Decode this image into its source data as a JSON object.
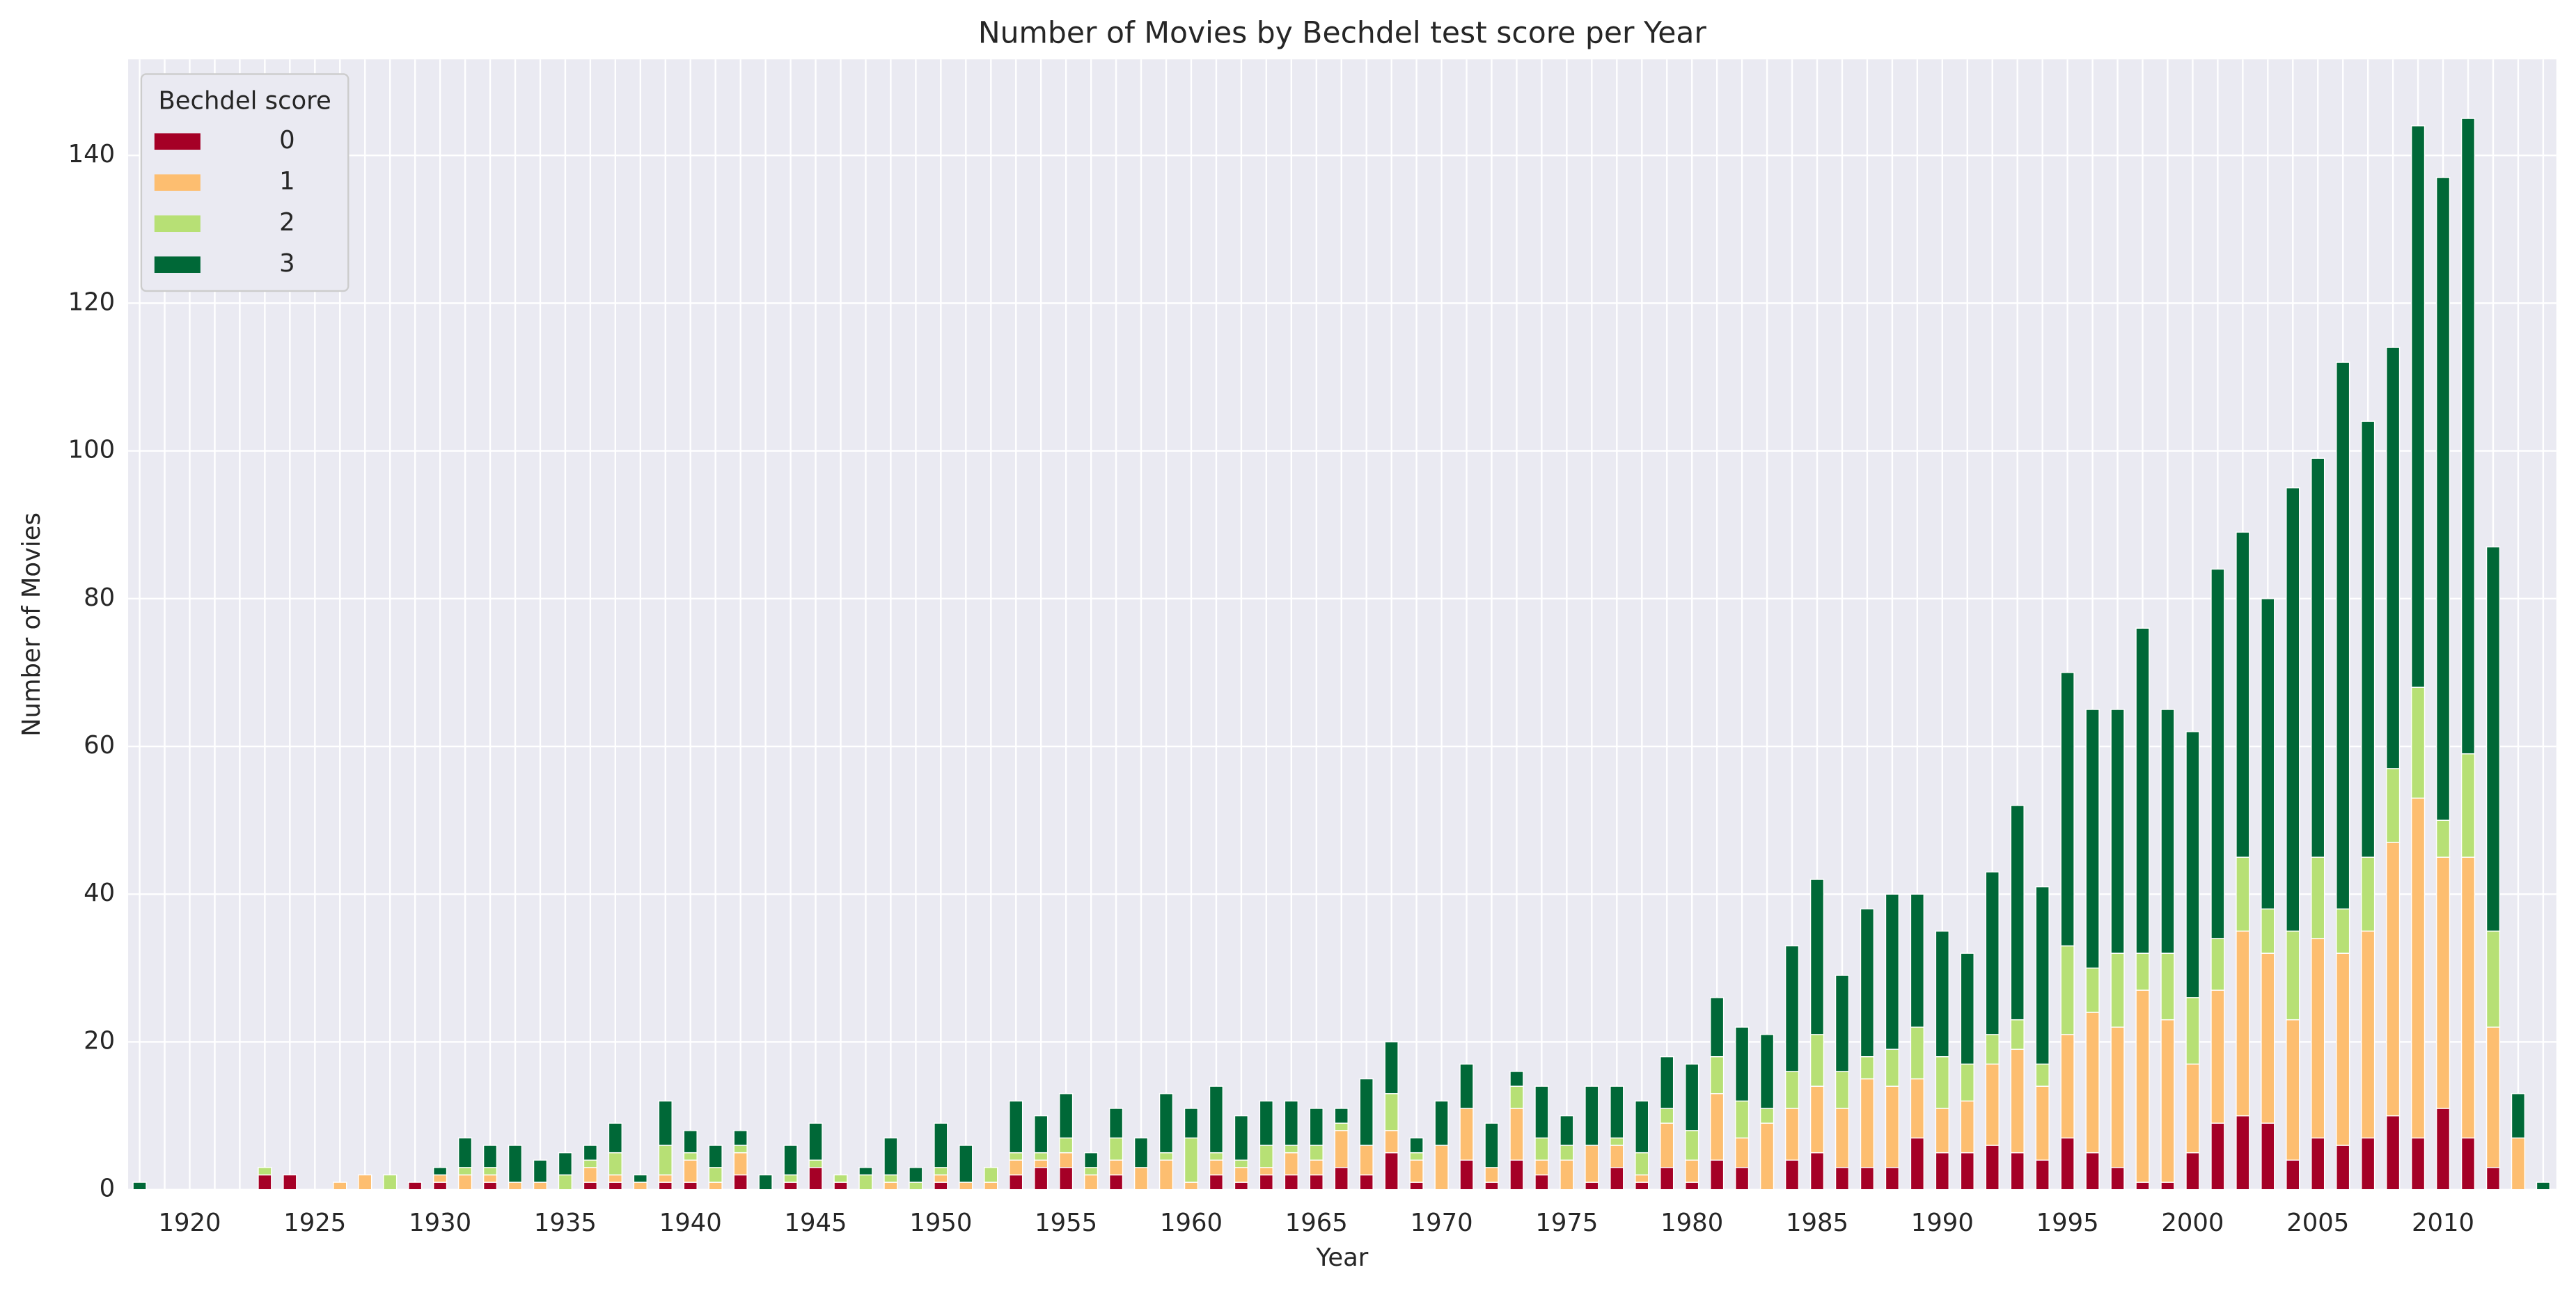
{
  "chart_data": {
    "type": "stacked_bar",
    "title": "Number of Movies by Bechdel test score per Year",
    "xlabel": "Year",
    "ylabel": "Number of Movies",
    "legend_title": "Bechdel score",
    "legend": "upper left",
    "grid": true,
    "categories": [
      null,
      null,
      "1920",
      null,
      null,
      null,
      null,
      "1925",
      null,
      null,
      null,
      null,
      "1930",
      null,
      null,
      null,
      null,
      "1935",
      null,
      null,
      null,
      null,
      "1940",
      null,
      null,
      null,
      null,
      "1945",
      null,
      null,
      null,
      null,
      "1950",
      null,
      null,
      null,
      null,
      "1955",
      null,
      null,
      null,
      null,
      "1960",
      null,
      null,
      null,
      null,
      "1965",
      null,
      null,
      null,
      null,
      "1970",
      null,
      null,
      null,
      null,
      "1975",
      null,
      null,
      null,
      null,
      "1980",
      null,
      null,
      null,
      null,
      "1985",
      null,
      null,
      null,
      null,
      "1990",
      null,
      null,
      null,
      null,
      "1995",
      null,
      null,
      null,
      null,
      "2000",
      null,
      null,
      null,
      null,
      "2005",
      null,
      null,
      null,
      null,
      "2010",
      null,
      null,
      null,
      null
    ],
    "series": [
      {
        "name": "0",
        "color": "#a50026",
        "values": [
          0,
          0,
          0,
          0,
          0,
          2,
          2,
          0,
          0,
          0,
          0,
          1,
          1,
          0,
          1,
          0,
          0,
          0,
          1,
          1,
          0,
          1,
          1,
          0,
          2,
          0,
          1,
          3,
          1,
          0,
          0,
          0,
          1,
          0,
          0,
          2,
          3,
          3,
          0,
          2,
          0,
          0,
          0,
          2,
          1,
          2,
          2,
          2,
          3,
          2,
          5,
          1,
          0,
          4,
          1,
          4,
          2,
          0,
          1,
          3,
          1,
          3,
          1,
          4,
          3,
          0,
          4,
          5,
          3,
          3,
          3,
          7,
          5,
          5,
          6,
          5,
          4,
          7,
          5,
          3,
          1,
          1,
          5,
          9,
          10,
          9,
          4,
          7,
          6,
          7,
          10,
          7,
          11,
          7,
          3,
          0,
          0
        ]
      },
      {
        "name": "1",
        "color": "#fdbe70",
        "values": [
          0,
          0,
          0,
          0,
          0,
          0,
          0,
          0,
          1,
          2,
          0,
          0,
          1,
          2,
          1,
          1,
          1,
          0,
          2,
          1,
          1,
          1,
          3,
          1,
          3,
          0,
          0,
          0,
          0,
          0,
          1,
          0,
          1,
          1,
          1,
          2,
          1,
          2,
          2,
          2,
          3,
          4,
          1,
          2,
          2,
          1,
          3,
          2,
          5,
          4,
          3,
          3,
          6,
          7,
          2,
          7,
          2,
          4,
          5,
          3,
          1,
          6,
          3,
          9,
          4,
          9,
          7,
          9,
          8,
          12,
          11,
          8,
          6,
          7,
          11,
          14,
          10,
          14,
          19,
          19,
          26,
          22,
          12,
          18,
          25,
          23,
          19,
          27,
          26,
          28,
          37,
          46,
          34,
          38,
          19,
          7,
          0
        ]
      },
      {
        "name": "2",
        "color": "#b7e075",
        "values": [
          0,
          0,
          0,
          0,
          0,
          1,
          0,
          0,
          0,
          0,
          2,
          0,
          0,
          1,
          1,
          0,
          0,
          2,
          1,
          3,
          0,
          4,
          1,
          2,
          1,
          0,
          1,
          1,
          1,
          2,
          1,
          1,
          1,
          0,
          2,
          1,
          1,
          2,
          1,
          3,
          0,
          1,
          6,
          1,
          1,
          3,
          1,
          2,
          1,
          0,
          5,
          1,
          0,
          0,
          0,
          3,
          3,
          2,
          0,
          1,
          3,
          2,
          4,
          5,
          5,
          2,
          5,
          7,
          5,
          3,
          5,
          7,
          7,
          5,
          4,
          4,
          3,
          12,
          6,
          10,
          5,
          9,
          9,
          7,
          10,
          6,
          12,
          11,
          6,
          10,
          10,
          15,
          5,
          14,
          13,
          0,
          0
        ]
      },
      {
        "name": "3",
        "color": "#006837",
        "values": [
          1,
          0,
          0,
          0,
          0,
          0,
          0,
          0,
          0,
          0,
          0,
          0,
          1,
          4,
          3,
          5,
          3,
          3,
          2,
          4,
          1,
          6,
          3,
          3,
          2,
          2,
          4,
          5,
          0,
          1,
          5,
          2,
          6,
          5,
          0,
          7,
          5,
          6,
          2,
          4,
          4,
          8,
          4,
          9,
          6,
          6,
          6,
          5,
          2,
          9,
          7,
          2,
          6,
          6,
          6,
          2,
          7,
          4,
          8,
          7,
          7,
          7,
          9,
          8,
          10,
          10,
          17,
          21,
          13,
          20,
          21,
          18,
          17,
          15,
          22,
          29,
          24,
          37,
          35,
          33,
          44,
          33,
          36,
          50,
          44,
          42,
          60,
          54,
          74,
          59,
          57,
          76,
          87,
          86,
          52,
          6,
          1
        ]
      }
    ],
    "ylim": [
      0,
      153
    ],
    "yticks": [
      0,
      20,
      40,
      60,
      80,
      100,
      120,
      140
    ]
  }
}
